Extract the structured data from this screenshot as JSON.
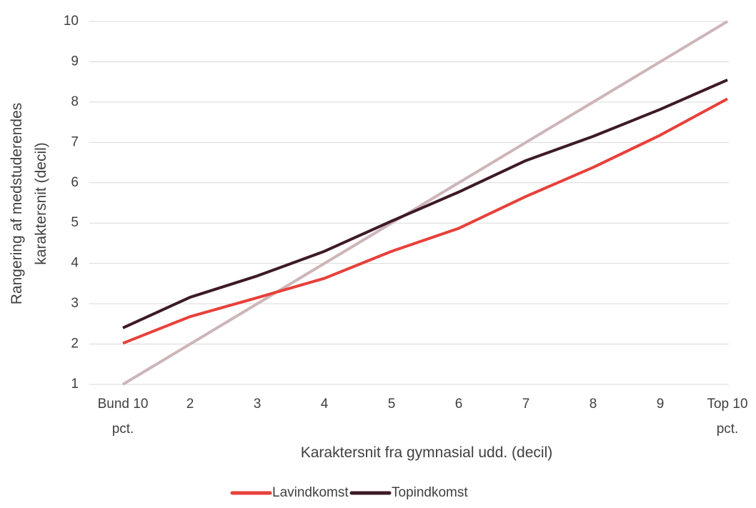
{
  "chart_data": {
    "type": "line",
    "x_label": "Karaktersnit fra gymnasial udd. (decil)",
    "y_label": "Rangering af medstuderendes\nkaraktersnit (decil)",
    "categories": [
      "Bund 10\npct.",
      "2",
      "3",
      "4",
      "5",
      "6",
      "7",
      "8",
      "9",
      "Top 10\npct."
    ],
    "series": [
      {
        "name": "Lavindkomst",
        "color": "#e8403a",
        "values": [
          2.02,
          2.68,
          3.15,
          3.63,
          4.3,
          4.87,
          5.66,
          6.38,
          7.18,
          8.08
        ]
      },
      {
        "name": "Topindkomst",
        "color": "#3d1a26",
        "values": [
          2.4,
          3.16,
          3.69,
          4.3,
          5.05,
          5.77,
          6.55,
          7.15,
          7.82,
          8.55
        ]
      },
      {
        "color": "#cdb5b8",
        "values": [
          1,
          2,
          3,
          4,
          5,
          6,
          7,
          8,
          9,
          10
        ]
      }
    ],
    "ylim": [
      1,
      10
    ],
    "yticks": [
      1,
      2,
      3,
      4,
      5,
      6,
      7,
      8,
      9,
      10
    ],
    "grid": true,
    "legend": "bottom"
  }
}
